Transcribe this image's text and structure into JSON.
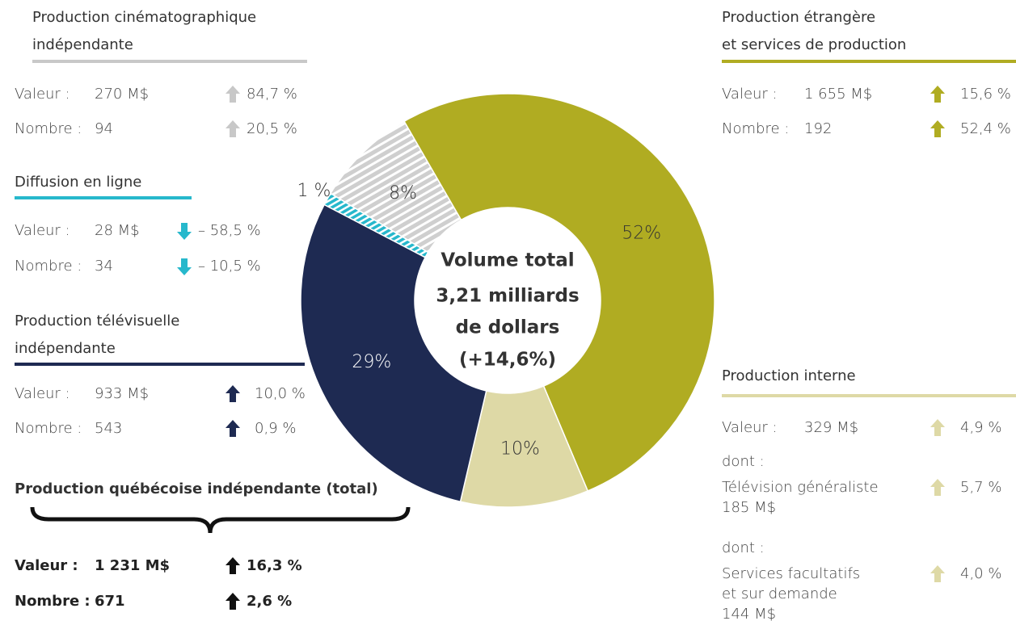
{
  "chart_data": {
    "type": "donut",
    "categories": [
      "Production étrangère et services de production",
      "Production interne",
      "Production télévisuelle indépendante",
      "Diffusion en ligne",
      "Production cinématographique indépendante"
    ],
    "values": [
      52,
      10,
      29,
      1,
      8
    ],
    "value_labels": [
      "52%",
      "10%",
      "29%",
      "1 %",
      "8%"
    ],
    "colors": [
      "#b0ac22",
      "#ded9a6",
      "#1e2a52",
      "#27b8cc",
      "#cfcfcf"
    ],
    "hatched": [
      false,
      false,
      false,
      true,
      true
    ],
    "center_text": [
      "Volume total",
      "3,21 milliards",
      "de dollars",
      "(+14,6%)"
    ]
  },
  "panels": [
    {
      "title": [
        "Production cinématographique",
        "indépendante"
      ],
      "color": "#c8c8c8",
      "rows": [
        {
          "label": "Valeur :",
          "value": "270 M$",
          "change": "84,7 %"
        },
        {
          "label": "Nombre :",
          "value": "94",
          "change": "20,5 %"
        }
      ]
    },
    {
      "title": [
        "Diffusion en ligne"
      ],
      "color": "#27b8cc",
      "rows": [
        {
          "label": "Valeur :",
          "value": "28 M$",
          "change": "– 58,5 %"
        },
        {
          "label": "Nombre :",
          "value": "34",
          "change": "– 10,5 %"
        }
      ]
    },
    {
      "title": [
        "Production télévisuelle",
        "indépendante"
      ],
      "color": "#1e2a52",
      "rows": [
        {
          "label": "Valeur :",
          "value": "933 M$",
          "change": "10,0 %"
        },
        {
          "label": "Nombre :",
          "value": "543",
          "change": "0,9 %"
        }
      ]
    },
    {
      "title": [
        "Production québécoise indépendante (total)"
      ],
      "color": "#111111",
      "rows": [
        {
          "label": "Valeur :",
          "value": "1 231 M$",
          "change": "16,3 %"
        },
        {
          "label": "Nombre :",
          "value": "671",
          "change": "2,6 %"
        }
      ]
    },
    {
      "title": [
        "Production étrangère",
        "et services de production"
      ],
      "color": "#b0ac22",
      "rows": [
        {
          "label": "Valeur :",
          "value": "1 655 M$",
          "change": "15,6 %"
        },
        {
          "label": "Nombre :",
          "value": "192",
          "change": "52,4 %"
        }
      ]
    },
    {
      "title": [
        "Production interne"
      ],
      "color": "#ded9a6",
      "rows": [
        {
          "label": "Valeur :",
          "value": "329 M$",
          "change": "4,9 %"
        },
        {
          "label": "dont :",
          "lines": [
            "Télévision généraliste",
            "185 M$"
          ],
          "change": "5,7 %"
        },
        {
          "label": "dont :",
          "lines": [
            "Services facultatifs",
            "et sur demande",
            "144 M$"
          ],
          "change": "4,0 %"
        }
      ]
    }
  ]
}
